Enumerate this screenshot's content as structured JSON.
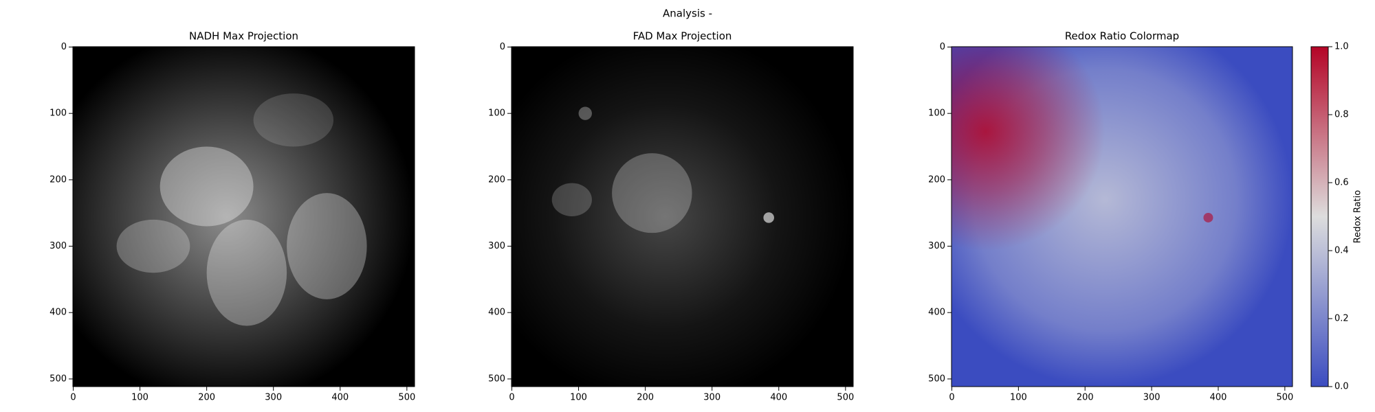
{
  "title": "Analysis -",
  "chart_data": [
    {
      "type": "image",
      "title": "NADH Max Projection",
      "cmap": [
        "#000000",
        "#ffffff"
      ],
      "xlim": [
        -0.5,
        511.5
      ],
      "ylim": [
        511.5,
        -0.5
      ],
      "xticks": [
        0,
        100,
        200,
        300,
        400,
        500
      ],
      "yticks": [
        0,
        100,
        200,
        300,
        400,
        500
      ]
    },
    {
      "type": "image",
      "title": "FAD Max Projection",
      "cmap": [
        "#000000",
        "#ffffff"
      ],
      "xlim": [
        -0.5,
        511.5
      ],
      "ylim": [
        511.5,
        -0.5
      ],
      "xticks": [
        0,
        100,
        200,
        300,
        400,
        500
      ],
      "yticks": [
        0,
        100,
        200,
        300,
        400,
        500
      ]
    },
    {
      "type": "image",
      "title": "Redox Ratio Colormap",
      "cmap": [
        "#3b4cc0",
        "#dddddd",
        "#b40426"
      ],
      "xlim": [
        -0.5,
        511.5
      ],
      "ylim": [
        511.5,
        -0.5
      ],
      "xticks": [
        0,
        100,
        200,
        300,
        400,
        500
      ],
      "yticks": [
        0,
        100,
        200,
        300,
        400,
        500
      ],
      "colorbar": {
        "label": "Redox Ratio",
        "lim": [
          0,
          1
        ],
        "ticks": [
          {
            "value": 0,
            "label": "0.0"
          },
          {
            "value": 0.2,
            "label": "0.2"
          },
          {
            "value": 0.4,
            "label": "0.4"
          },
          {
            "value": 0.6,
            "label": "0.6"
          },
          {
            "value": 0.8,
            "label": "0.8"
          },
          {
            "value": 1,
            "label": "1.0"
          }
        ]
      }
    }
  ]
}
